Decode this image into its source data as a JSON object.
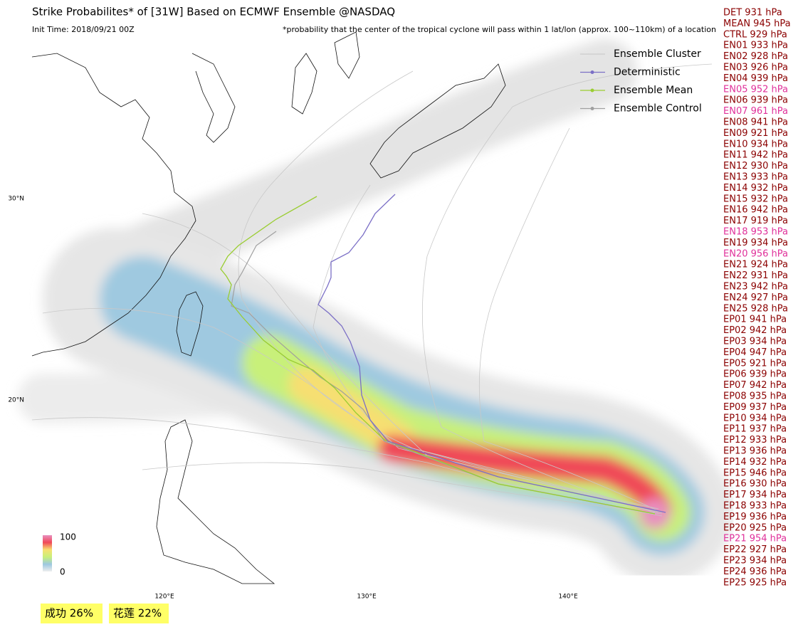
{
  "title": "Strike Probabilites* of [31W] Based on ECMWF Ensemble  @NASDAQ",
  "init_time": "Init Time: 2018/09/21 00Z",
  "note": "*probability that the center of the tropical cyclone will pass within 1 lat/lon (approx. 100~110km) of a location",
  "legend": [
    "Ensemble Cluster",
    "Deterministic",
    "Ensemble Mean",
    "Ensemble Control"
  ],
  "legend_colors": [
    "#cccccc",
    "#7b6fc6",
    "#9acd32",
    "#a0a0a0"
  ],
  "lat_labels": [
    "30°N",
    "20°N"
  ],
  "lon_labels": [
    "120°E",
    "130°E",
    "140°E"
  ],
  "colorbar": {
    "max_label": "100",
    "min_label": "0"
  },
  "locations": [
    "成功 26%",
    "花莲 22%"
  ],
  "members": [
    {
      "label": "DET 931 hPa",
      "color": "#8b0000"
    },
    {
      "label": "MEAN 945 hPa",
      "color": "#8b0000"
    },
    {
      "label": "CTRL 929 hPa",
      "color": "#8b0000"
    },
    {
      "label": "EN01 933 hPa",
      "color": "#8b0000"
    },
    {
      "label": "EN02 928 hPa",
      "color": "#8b0000"
    },
    {
      "label": "EN03 926 hPa",
      "color": "#8b0000"
    },
    {
      "label": "EN04 939 hPa",
      "color": "#8b0000"
    },
    {
      "label": "EN05 952 hPa",
      "color": "#e0309a"
    },
    {
      "label": "EN06 939 hPa",
      "color": "#8b0000"
    },
    {
      "label": "EN07 961 hPa",
      "color": "#e0309a"
    },
    {
      "label": "EN08 941 hPa",
      "color": "#8b0000"
    },
    {
      "label": "EN09 921 hPa",
      "color": "#8b0000"
    },
    {
      "label": "EN10 934 hPa",
      "color": "#8b0000"
    },
    {
      "label": "EN11 942 hPa",
      "color": "#8b0000"
    },
    {
      "label": "EN12 930 hPa",
      "color": "#8b0000"
    },
    {
      "label": "EN13 933 hPa",
      "color": "#8b0000"
    },
    {
      "label": "EN14 932 hPa",
      "color": "#8b0000"
    },
    {
      "label": "EN15 932 hPa",
      "color": "#8b0000"
    },
    {
      "label": "EN16 942 hPa",
      "color": "#8b0000"
    },
    {
      "label": "EN17 919 hPa",
      "color": "#8b0000"
    },
    {
      "label": "EN18 953 hPa",
      "color": "#e0309a"
    },
    {
      "label": "EN19 934 hPa",
      "color": "#8b0000"
    },
    {
      "label": "EN20 956 hPa",
      "color": "#e0309a"
    },
    {
      "label": "EN21 924 hPa",
      "color": "#8b0000"
    },
    {
      "label": "EN22 931 hPa",
      "color": "#8b0000"
    },
    {
      "label": "EN23 942 hPa",
      "color": "#8b0000"
    },
    {
      "label": "EN24 927 hPa",
      "color": "#8b0000"
    },
    {
      "label": "EN25 928 hPa",
      "color": "#8b0000"
    },
    {
      "label": "EP01 941 hPa",
      "color": "#8b0000"
    },
    {
      "label": "EP02 942 hPa",
      "color": "#8b0000"
    },
    {
      "label": "EP03 934 hPa",
      "color": "#8b0000"
    },
    {
      "label": "EP04 947 hPa",
      "color": "#8b0000"
    },
    {
      "label": "EP05 921 hPa",
      "color": "#8b0000"
    },
    {
      "label": "EP06 939 hPa",
      "color": "#8b0000"
    },
    {
      "label": "EP07 942 hPa",
      "color": "#8b0000"
    },
    {
      "label": "EP08 935 hPa",
      "color": "#8b0000"
    },
    {
      "label": "EP09 937 hPa",
      "color": "#8b0000"
    },
    {
      "label": "EP10 934 hPa",
      "color": "#8b0000"
    },
    {
      "label": "EP11 937 hPa",
      "color": "#8b0000"
    },
    {
      "label": "EP12 933 hPa",
      "color": "#8b0000"
    },
    {
      "label": "EP13 936 hPa",
      "color": "#8b0000"
    },
    {
      "label": "EP14 932 hPa",
      "color": "#8b0000"
    },
    {
      "label": "EP15 946 hPa",
      "color": "#8b0000"
    },
    {
      "label": "EP16 930 hPa",
      "color": "#8b0000"
    },
    {
      "label": "EP17 934 hPa",
      "color": "#8b0000"
    },
    {
      "label": "EP18 933 hPa",
      "color": "#8b0000"
    },
    {
      "label": "EP19 936 hPa",
      "color": "#8b0000"
    },
    {
      "label": "EP20 925 hPa",
      "color": "#8b0000"
    },
    {
      "label": "EP21 954 hPa",
      "color": "#e0309a"
    },
    {
      "label": "EP22 927 hPa",
      "color": "#8b0000"
    },
    {
      "label": "EP23 934 hPa",
      "color": "#8b0000"
    },
    {
      "label": "EP24 936 hPa",
      "color": "#8b0000"
    },
    {
      "label": "EP25 925 hPa",
      "color": "#8b0000"
    }
  ]
}
